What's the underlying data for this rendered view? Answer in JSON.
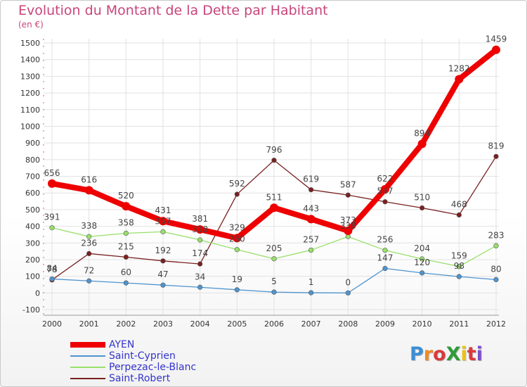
{
  "title": "Evolution du Montant de la Dette par Habitant",
  "subtitle": "(en €)",
  "logo": {
    "text": "ProXiti",
    "colors": [
      "#3a8fd6",
      "#f08a24",
      "#d93a3a",
      "#2f9b3a",
      "#e9c21c",
      "#d93a3a",
      "#7b4fc9"
    ]
  },
  "chart_data": {
    "type": "line",
    "title": "Evolution du Montant de la Dette par Habitant",
    "ylabel": "(en €)",
    "xlabel": "",
    "x": [
      "2000",
      "2001",
      "2002",
      "2003",
      "2004",
      "2005",
      "2006",
      "2007",
      "2008",
      "2009",
      "2010",
      "2011",
      "2012"
    ],
    "ylim": [
      -100,
      1500
    ],
    "yticks": [
      "-100",
      "0",
      "100",
      "200",
      "300",
      "400",
      "500",
      "600",
      "700",
      "800",
      "900",
      "1000",
      "1100",
      "1200",
      "1300",
      "1400",
      "1500"
    ],
    "grid": true,
    "legend_position": "bottom-left",
    "series": [
      {
        "name": "AYEN",
        "color": "#ee0000",
        "values": [
          656,
          616,
          520,
          431,
          381,
          329,
          511,
          443,
          373,
          622,
          894,
          1282,
          1459
        ],
        "labels": [
          "656",
          "616",
          "520",
          "431",
          "381",
          "329",
          "511",
          "443",
          "373",
          "622",
          "894",
          "1282",
          "1459"
        ]
      },
      {
        "name": "Saint-Cyprien",
        "color": "#4f94cf",
        "values": [
          84,
          72,
          60,
          47,
          34,
          19,
          5,
          1,
          0,
          147,
          120,
          98,
          80
        ],
        "labels": [
          "84",
          "72",
          "60",
          "47",
          "34",
          "19",
          "5",
          "1",
          "0",
          "147",
          "120",
          "98",
          "80"
        ]
      },
      {
        "name": "Perpezac-le-Blanc",
        "color": "#99e06a",
        "values": [
          391,
          338,
          358,
          367,
          318,
          260,
          205,
          257,
          338,
          256,
          204,
          159,
          283
        ],
        "labels": [
          "391",
          "338",
          "358",
          "367",
          "318",
          "260",
          "205",
          "257",
          "338",
          "256",
          "204",
          "159",
          "283"
        ]
      },
      {
        "name": "Saint-Robert",
        "color": "#7a2020",
        "values": [
          78,
          236,
          215,
          192,
          174,
          592,
          796,
          619,
          587,
          547,
          510,
          468,
          819
        ],
        "labels": [
          "78",
          "236",
          "215",
          "192",
          "174",
          "592",
          "796",
          "619",
          "587",
          "547",
          "510",
          "468",
          "819"
        ]
      }
    ]
  }
}
